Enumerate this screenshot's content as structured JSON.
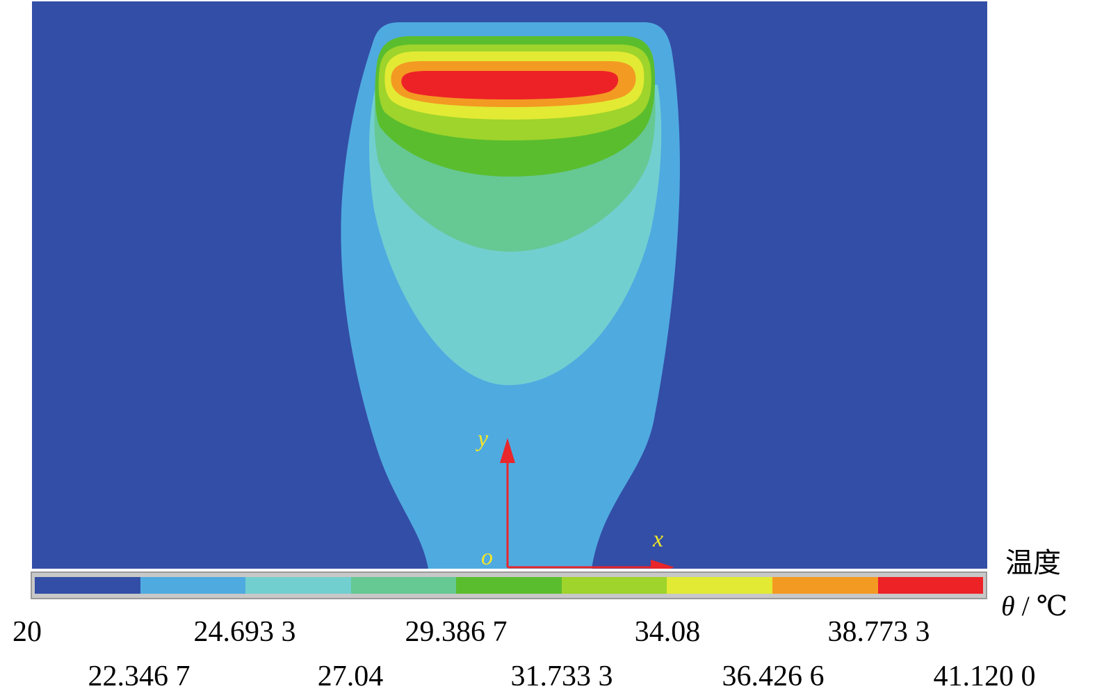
{
  "chart_data": {
    "type": "heatmap",
    "title": "",
    "legend": {
      "title": "温度",
      "unit_symbol": "θ",
      "unit_text": " / ℃"
    },
    "levels": [
      20,
      22.3467,
      24.6933,
      27.04,
      29.3867,
      31.7333,
      34.08,
      36.4266,
      38.7733,
      41.12
    ],
    "tick_labels_upper": [
      "20",
      "24.693 3",
      "29.386 7",
      "34.08",
      "38.773 3"
    ],
    "tick_labels_lower": [
      "22.346 7",
      "27.04",
      "31.733 3",
      "36.426 6",
      "41.120 0"
    ],
    "colors": [
      "#334ea6",
      "#4faae0",
      "#72cfd0",
      "#66c893",
      "#5abd2e",
      "#9ed42b",
      "#e2ea34",
      "#f39a22",
      "#ed2227"
    ],
    "min": 20,
    "max": 41.12,
    "axes": {
      "x_label": "x",
      "y_label": "y",
      "origin_label": "o",
      "arrow_color": "#e8262b",
      "label_color": "#f2e62a"
    }
  }
}
